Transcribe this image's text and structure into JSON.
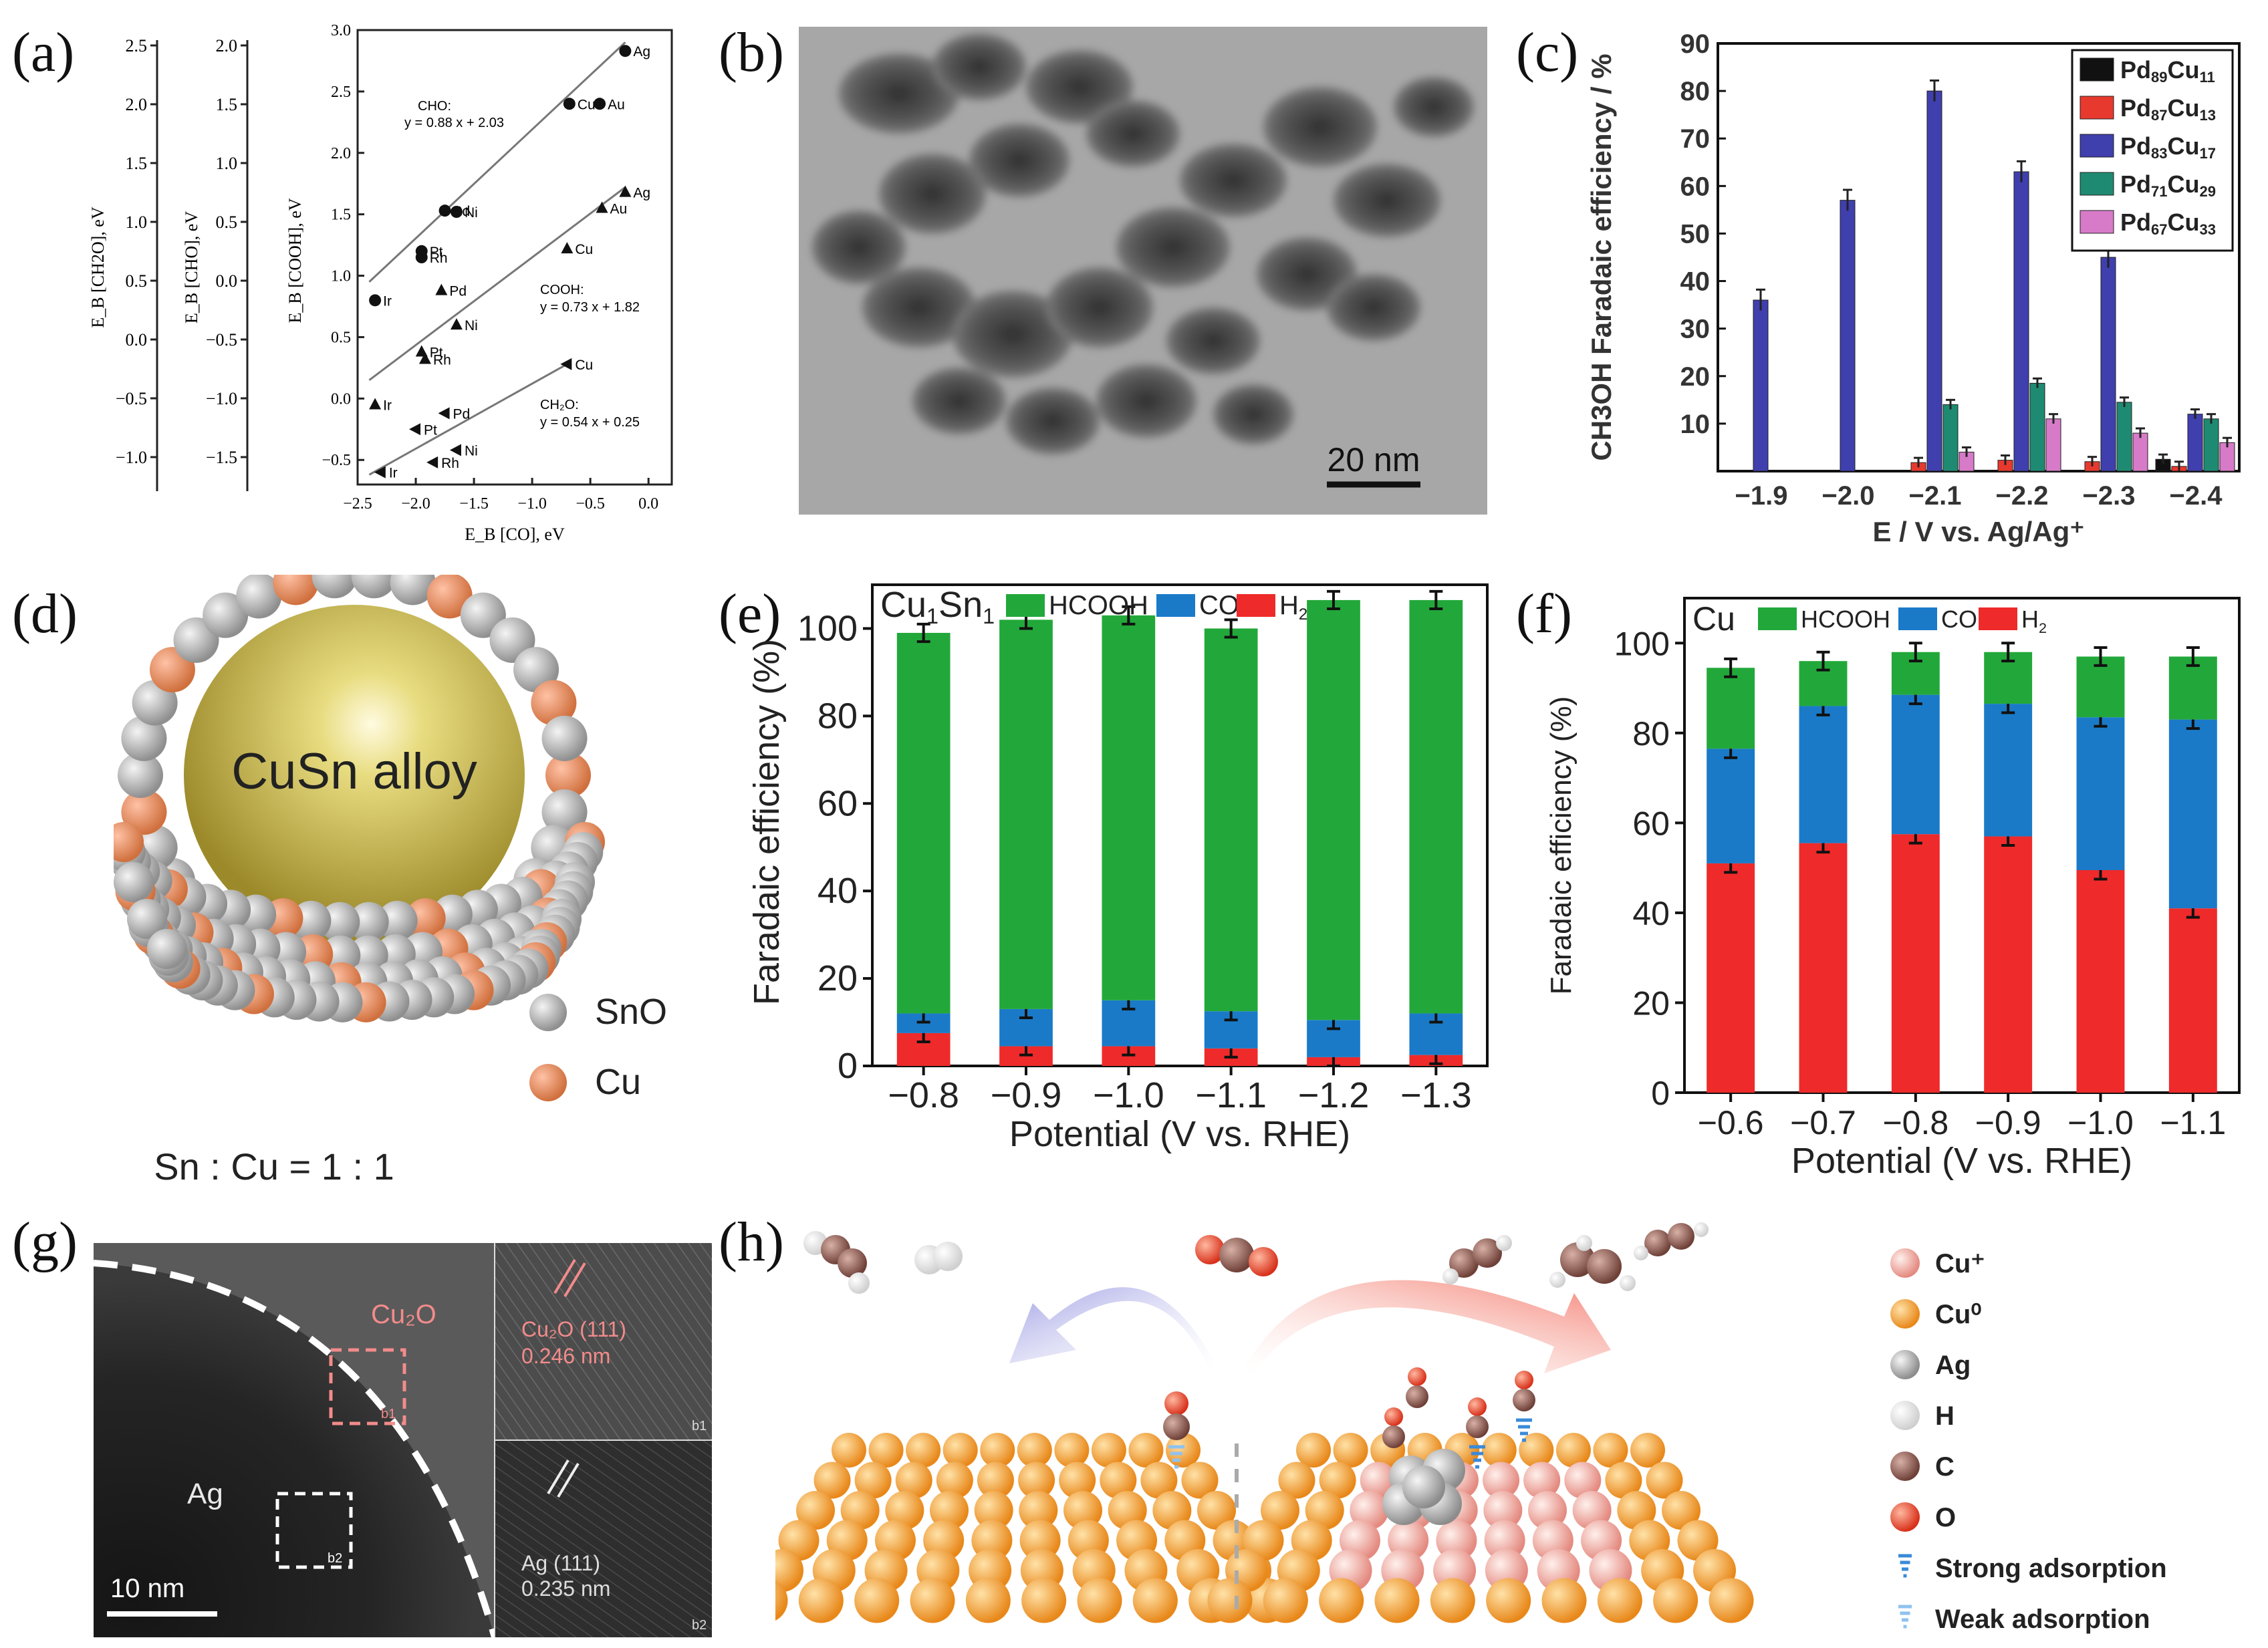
{
  "panel_labels": {
    "a": "(a)",
    "b": "(b)",
    "c": "(c)",
    "d": "(d)",
    "e": "(e)",
    "f": "(f)",
    "g": "(g)",
    "h": "(h)"
  },
  "colors": {
    "hcooh": "#22a83a",
    "co": "#1a7ac8",
    "h2": "#ee2a2a",
    "pd89": "#111111",
    "pd87": "#e8392f",
    "pd83": "#3f3fae",
    "pd71": "#1e8a72",
    "pd67": "#d77bc8",
    "cu_plus": "#f7b2a8",
    "cu0": "#f7a23a",
    "ag": "#b0b0b0",
    "h": "#f4f4f4",
    "c": "#8a5a50",
    "o": "#ee4a2a"
  },
  "panel_a": {
    "left_axes": [
      {
        "label": "E_B [CH2O], eV",
        "ticks": [
          "2.5",
          "2.0",
          "1.5",
          "1.0",
          "0.5",
          "0.0",
          "−0.5",
          "−1.0"
        ]
      },
      {
        "label": "E_B [CHO], eV",
        "ticks": [
          "2.0",
          "1.5",
          "1.0",
          "0.5",
          "0.0",
          "−0.5",
          "−1.0",
          "−1.5"
        ]
      }
    ],
    "chart_data": {
      "type": "scatter",
      "xlabel": "E_B [CO], eV",
      "ylabel": "E_B [COOH], eV",
      "xlim": [
        -2.5,
        0.2
      ],
      "ylim": [
        -0.7,
        3.0
      ],
      "xticks": [
        "−2.5",
        "−2.0",
        "−1.5",
        "−1.0",
        "−0.5",
        "0.0"
      ],
      "yticks": [
        "3.0",
        "2.5",
        "2.0",
        "1.5",
        "1.0",
        "0.5",
        "0.0",
        "−0.5"
      ],
      "series": [
        {
          "name": "CHO",
          "marker": "circle",
          "points": [
            {
              "label": "Ag",
              "x": -0.2,
              "y": 2.83
            },
            {
              "label": "Cu",
              "x": -0.68,
              "y": 2.4
            },
            {
              "label": "Au",
              "x": -0.42,
              "y": 2.4
            },
            {
              "label": "Pd",
              "x": -1.75,
              "y": 1.53
            },
            {
              "label": "Ni",
              "x": -1.65,
              "y": 1.52
            },
            {
              "label": "Pt",
              "x": -1.95,
              "y": 1.2
            },
            {
              "label": "Rh",
              "x": -1.95,
              "y": 1.15
            },
            {
              "label": "Ir",
              "x": -2.35,
              "y": 0.8
            }
          ],
          "equation_label": "CHO:",
          "equation": "y = 0.88 x + 2.03"
        },
        {
          "name": "COOH",
          "marker": "triangle-up",
          "points": [
            {
              "label": "Ag",
              "x": -0.2,
              "y": 1.68
            },
            {
              "label": "Au",
              "x": -0.4,
              "y": 1.55
            },
            {
              "label": "Cu",
              "x": -0.7,
              "y": 1.22
            },
            {
              "label": "Pd",
              "x": -1.78,
              "y": 0.88
            },
            {
              "label": "Ni",
              "x": -1.65,
              "y": 0.6
            },
            {
              "label": "Pt",
              "x": -1.95,
              "y": 0.38
            },
            {
              "label": "Rh",
              "x": -1.92,
              "y": 0.32
            },
            {
              "label": "Ir",
              "x": -2.35,
              "y": -0.05
            }
          ],
          "equation_label": "COOH:",
          "equation": "y = 0.73 x + 1.82"
        },
        {
          "name": "CH2O",
          "marker": "triangle-left",
          "points": [
            {
              "label": "Cu",
              "x": -0.7,
              "y": 0.28
            },
            {
              "label": "Pd",
              "x": -1.75,
              "y": -0.12
            },
            {
              "label": "Pt",
              "x": -2.0,
              "y": -0.25
            },
            {
              "label": "Ni",
              "x": -1.65,
              "y": -0.42
            },
            {
              "label": "Rh",
              "x": -1.85,
              "y": -0.52
            },
            {
              "label": "Ir",
              "x": -2.3,
              "y": -0.6
            }
          ],
          "equation_label": "CH₂O:",
          "equation": "y = 0.54 x + 0.25"
        }
      ]
    }
  },
  "panel_b": {
    "scale_bar": "20 nm"
  },
  "panel_c": {
    "chart_data": {
      "type": "bar",
      "ylabel": "CH3OH Faradaic efficiency / %",
      "xlabel": "E / V vs. Ag/Ag⁺",
      "ylim": [
        0,
        90
      ],
      "yticks": [
        "10",
        "20",
        "30",
        "40",
        "50",
        "60",
        "70",
        "80",
        "90"
      ],
      "categories": [
        "−1.9",
        "−2.0",
        "−2.1",
        "−2.2",
        "−2.3",
        "−2.4"
      ],
      "series": [
        {
          "name": "Pd89Cu11",
          "base": "Pd",
          "a": "89",
          "mid": "Cu",
          "b": "11",
          "values": [
            0,
            0,
            0,
            0,
            0,
            2.5
          ]
        },
        {
          "name": "Pd87Cu13",
          "base": "Pd",
          "a": "87",
          "mid": "Cu",
          "b": "13",
          "values": [
            0,
            0,
            1.8,
            2.3,
            2,
            1
          ]
        },
        {
          "name": "Pd83Cu17",
          "base": "Pd",
          "a": "83",
          "mid": "Cu",
          "b": "17",
          "values": [
            36,
            57,
            80,
            63,
            45,
            12
          ]
        },
        {
          "name": "Pd71Cu29",
          "base": "Pd",
          "a": "71",
          "mid": "Cu",
          "b": "29",
          "values": [
            0,
            0,
            14,
            18.5,
            14.5,
            11
          ]
        },
        {
          "name": "Pd67Cu33",
          "base": "Pd",
          "a": "67",
          "mid": "Cu",
          "b": "33",
          "values": [
            0,
            0,
            4,
            11,
            8,
            6
          ]
        }
      ]
    }
  },
  "panel_d": {
    "core_label": "CuSn alloy",
    "legend": [
      "SnO",
      "Cu"
    ],
    "ratio": "Sn : Cu = 1 : 1"
  },
  "panel_e": {
    "chart_data": {
      "type": "bar",
      "stacked": true,
      "catalyst": "Cu1Sn1",
      "ylabel": "Faradaic efficiency (%)",
      "xlabel": "Potential (V vs. RHE)",
      "ylim": [
        0,
        110
      ],
      "yticks": [
        "0",
        "20",
        "40",
        "60",
        "80",
        "100"
      ],
      "categories": [
        "−0.8",
        "−0.9",
        "−1.0",
        "−1.1",
        "−1.2",
        "−1.3"
      ],
      "series": [
        {
          "name": "H2",
          "values": [
            7.5,
            4.5,
            4.5,
            4,
            2,
            2.5
          ]
        },
        {
          "name": "CO",
          "values": [
            4.5,
            8.5,
            10.5,
            8.5,
            8.5,
            9.5
          ]
        },
        {
          "name": "HCOOH",
          "values": [
            87,
            89,
            88,
            87.5,
            96,
            94.5
          ]
        }
      ],
      "legend": [
        "HCOOH",
        "CO",
        "H2"
      ]
    }
  },
  "panel_f": {
    "chart_data": {
      "type": "bar",
      "stacked": true,
      "catalyst": "Cu",
      "ylabel": "Faradaic efficiency (%)",
      "xlabel": "Potential (V vs. RHE)",
      "ylim": [
        0,
        110
      ],
      "yticks": [
        "0",
        "20",
        "40",
        "60",
        "80",
        "100"
      ],
      "categories": [
        "−0.6",
        "−0.7",
        "−0.8",
        "−0.9",
        "−1.0",
        "−1.1"
      ],
      "series": [
        {
          "name": "H2",
          "values": [
            51,
            55.5,
            57.5,
            57,
            49.5,
            41
          ]
        },
        {
          "name": "CO",
          "values": [
            25.5,
            30.5,
            31,
            29.5,
            34,
            42
          ]
        },
        {
          "name": "HCOOH",
          "values": [
            18,
            10,
            9.5,
            11.5,
            13.5,
            14
          ]
        }
      ],
      "legend": [
        "HCOOH",
        "CO",
        "H2"
      ]
    }
  },
  "panel_g": {
    "region_label": "Cu₂O",
    "core_label": "Ag",
    "scale_bar": "10 nm",
    "box_b1": "b1",
    "box_b2": "b2",
    "inset_b1_lines": [
      "Cu₂O (111)",
      "0.246 nm"
    ],
    "inset_b2_lines": [
      "Ag (111)",
      "0.235 nm"
    ]
  },
  "panel_h": {
    "legend": [
      "Cu⁺",
      "Cu⁰",
      "Ag",
      "H",
      "C",
      "O",
      "Strong adsorption",
      "Weak adsorption"
    ]
  }
}
